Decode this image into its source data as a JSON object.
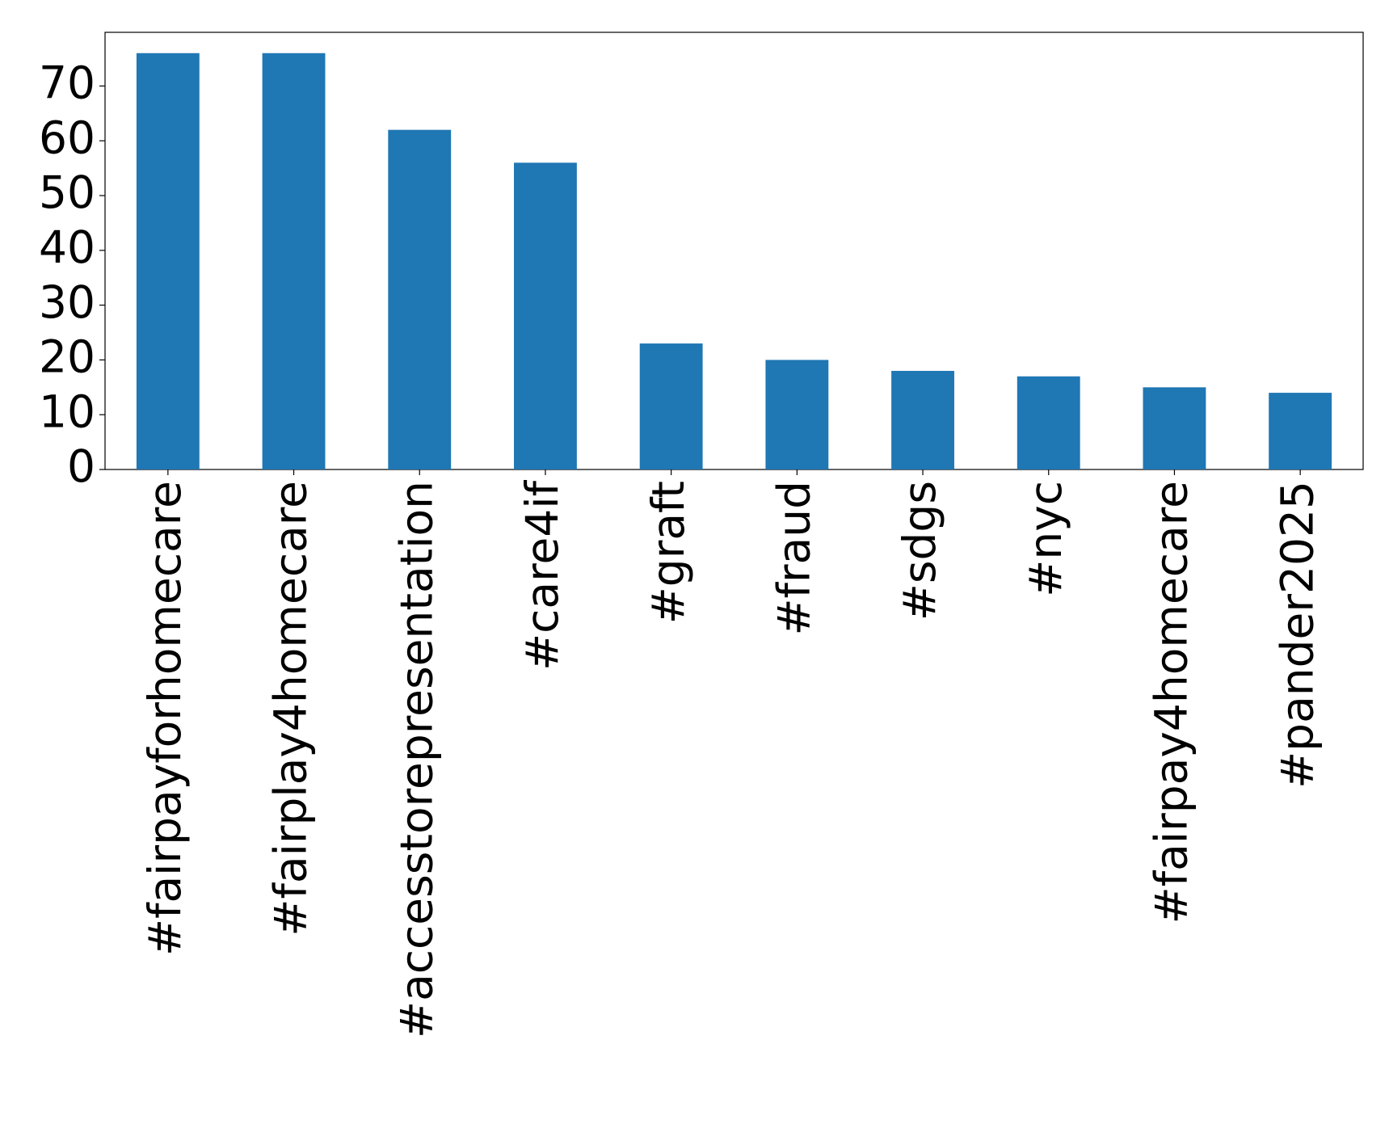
{
  "chart_data": {
    "type": "bar",
    "categories": [
      "#fairpayforhomecare",
      "#fairplay4homecare",
      "#accesstorepresentation",
      "#care4if",
      "#graft",
      "#fraud",
      "#sdgs",
      "#nyc",
      "#fairpay4homecare",
      "#pander2025"
    ],
    "values": [
      76,
      76,
      62,
      56,
      23,
      20,
      18,
      17,
      15,
      14
    ],
    "color": "#1f77b4",
    "ylim": [
      0,
      79.8
    ],
    "yticks": [
      0,
      10,
      20,
      30,
      40,
      50,
      60,
      70
    ],
    "grid": false
  }
}
